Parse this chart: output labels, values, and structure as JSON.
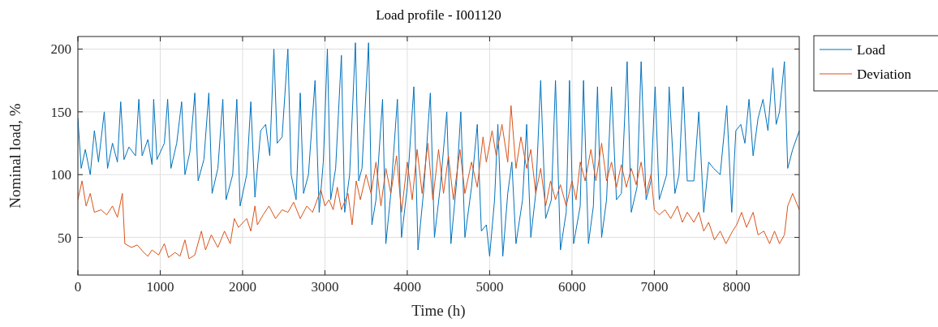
{
  "chart_data": {
    "type": "line",
    "title": "Load profile - I001120",
    "xlabel": "Time (h)",
    "ylabel": "Nominal load, %",
    "xlim": [
      0,
      8760
    ],
    "xticks": [
      0,
      1000,
      2000,
      3000,
      4000,
      5000,
      6000,
      7000,
      8000
    ],
    "ylim": [
      20,
      210
    ],
    "yticks": [
      50,
      100,
      150,
      200
    ],
    "grid": true,
    "legend": "top right",
    "series": [
      {
        "name": "Load",
        "color": "#0072bd",
        "x": [
          0,
          40,
          90,
          150,
          200,
          250,
          320,
          360,
          420,
          480,
          520,
          560,
          620,
          700,
          740,
          780,
          850,
          900,
          920,
          960,
          1050,
          1090,
          1130,
          1200,
          1260,
          1300,
          1360,
          1420,
          1460,
          1530,
          1590,
          1630,
          1700,
          1760,
          1800,
          1880,
          1930,
          1970,
          2050,
          2100,
          2150,
          2220,
          2280,
          2330,
          2380,
          2420,
          2480,
          2550,
          2590,
          2650,
          2700,
          2740,
          2800,
          2880,
          2930,
          2980,
          3030,
          3070,
          3130,
          3200,
          3240,
          3300,
          3370,
          3410,
          3450,
          3530,
          3570,
          3620,
          3700,
          3740,
          3800,
          3880,
          3930,
          4000,
          4080,
          4130,
          4200,
          4280,
          4330,
          4400,
          4480,
          4530,
          4600,
          4650,
          4700,
          4780,
          4850,
          4900,
          4960,
          5000,
          5060,
          5100,
          5160,
          5220,
          5270,
          5320,
          5400,
          5450,
          5500,
          5560,
          5620,
          5680,
          5750,
          5800,
          5860,
          5930,
          5970,
          6020,
          6100,
          6140,
          6200,
          6260,
          6310,
          6360,
          6420,
          6480,
          6540,
          6600,
          6670,
          6720,
          6790,
          6840,
          6900,
          6960,
          7010,
          7060,
          7150,
          7180,
          7250,
          7300,
          7350,
          7400,
          7480,
          7540,
          7600,
          7660,
          7720,
          7800,
          7880,
          7940,
          7990,
          8050,
          8100,
          8150,
          8200,
          8260,
          8320,
          8380,
          8440,
          8480,
          8520,
          8580,
          8620,
          8680,
          8760
        ],
        "values": [
          145,
          105,
          120,
          100,
          135,
          110,
          150,
          105,
          125,
          110,
          158,
          112,
          122,
          115,
          160,
          115,
          128,
          108,
          160,
          112,
          125,
          160,
          105,
          125,
          158,
          100,
          118,
          165,
          95,
          112,
          165,
          85,
          105,
          160,
          80,
          100,
          160,
          75,
          100,
          158,
          82,
          135,
          140,
          115,
          200,
          125,
          130,
          200,
          100,
          80,
          165,
          85,
          100,
          175,
          70,
          110,
          200,
          80,
          105,
          195,
          70,
          100,
          205,
          95,
          105,
          205,
          60,
          80,
          160,
          45,
          85,
          160,
          50,
          90,
          170,
          40,
          88,
          165,
          50,
          90,
          150,
          45,
          95,
          150,
          50,
          90,
          140,
          55,
          60,
          35,
          80,
          140,
          35,
          85,
          110,
          45,
          80,
          140,
          50,
          85,
          175,
          65,
          80,
          175,
          40,
          70,
          175,
          45,
          75,
          175,
          45,
          75,
          170,
          50,
          80,
          170,
          80,
          85,
          190,
          70,
          90,
          190,
          80,
          95,
          170,
          80,
          100,
          170,
          85,
          100,
          170,
          95,
          95,
          150,
          70,
          110,
          105,
          100,
          155,
          70,
          135,
          140,
          125,
          160,
          115,
          145,
          160,
          135,
          185,
          140,
          150,
          190,
          105,
          120,
          135
        ]
      },
      {
        "name": "Deviation",
        "color": "#d95319",
        "x": [
          0,
          50,
          100,
          150,
          200,
          280,
          350,
          420,
          480,
          540,
          570,
          650,
          720,
          800,
          850,
          900,
          980,
          1050,
          1100,
          1180,
          1240,
          1300,
          1350,
          1420,
          1500,
          1550,
          1620,
          1700,
          1780,
          1850,
          1900,
          1950,
          2050,
          2100,
          2150,
          2180,
          2250,
          2320,
          2400,
          2480,
          2550,
          2620,
          2700,
          2780,
          2850,
          2950,
          3000,
          3050,
          3100,
          3150,
          3200,
          3280,
          3330,
          3380,
          3430,
          3500,
          3560,
          3620,
          3680,
          3740,
          3800,
          3870,
          3930,
          4000,
          4060,
          4120,
          4180,
          4250,
          4310,
          4380,
          4440,
          4500,
          4560,
          4640,
          4700,
          4780,
          4850,
          4920,
          4960,
          5030,
          5080,
          5150,
          5220,
          5260,
          5320,
          5380,
          5450,
          5500,
          5560,
          5620,
          5680,
          5740,
          5800,
          5860,
          5930,
          6000,
          6050,
          6100,
          6160,
          6230,
          6290,
          6360,
          6420,
          6480,
          6540,
          6600,
          6660,
          6720,
          6780,
          6840,
          6900,
          6960,
          7000,
          7060,
          7130,
          7200,
          7280,
          7340,
          7400,
          7480,
          7540,
          7600,
          7660,
          7730,
          7800,
          7870,
          7950,
          8000,
          8060,
          8120,
          8200,
          8260,
          8330,
          8400,
          8460,
          8520,
          8580,
          8620,
          8680,
          8760
        ],
        "values": [
          80,
          95,
          75,
          85,
          70,
          72,
          68,
          75,
          66,
          85,
          45,
          42,
          44,
          38,
          35,
          40,
          36,
          45,
          34,
          38,
          35,
          48,
          33,
          36,
          55,
          40,
          52,
          42,
          55,
          45,
          65,
          58,
          65,
          55,
          75,
          60,
          68,
          75,
          65,
          72,
          70,
          78,
          65,
          75,
          70,
          88,
          75,
          80,
          72,
          90,
          72,
          85,
          60,
          95,
          80,
          100,
          85,
          110,
          75,
          105,
          85,
          115,
          70,
          110,
          80,
          120,
          85,
          125,
          80,
          120,
          85,
          115,
          80,
          120,
          85,
          110,
          90,
          130,
          110,
          135,
          115,
          140,
          110,
          155,
          105,
          130,
          105,
          120,
          85,
          105,
          75,
          95,
          80,
          92,
          75,
          95,
          80,
          110,
          95,
          120,
          95,
          125,
          95,
          110,
          90,
          108,
          90,
          105,
          92,
          110,
          85,
          100,
          72,
          68,
          72,
          65,
          75,
          62,
          70,
          62,
          70,
          55,
          62,
          48,
          55,
          45,
          55,
          60,
          70,
          58,
          70,
          52,
          55,
          45,
          55,
          45,
          52,
          75,
          85,
          72
        ]
      }
    ]
  }
}
